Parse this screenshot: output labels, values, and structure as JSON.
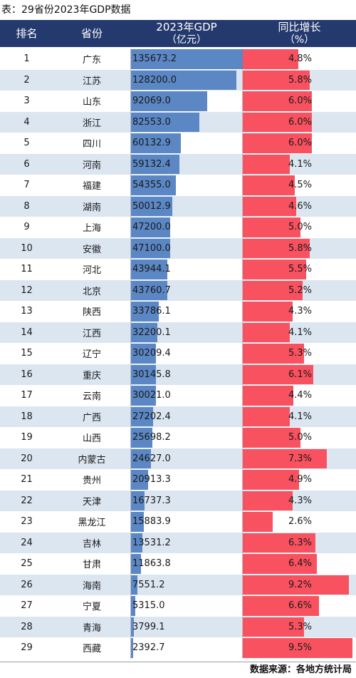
{
  "caption": "表：29省份2023年GDP数据",
  "headers": {
    "rank": "排名",
    "province": "省份",
    "gdp_line1": "2023年GDP",
    "gdp_line2": "（亿元）",
    "growth_line1": "同比增长",
    "growth_line2": "（%）"
  },
  "colors": {
    "header_bg": "#243a6e",
    "gdp_bar": "#5b87c5",
    "growth_bar": "#f8515f",
    "alt_row": "#dce6f1"
  },
  "gdp_max": 135673.2,
  "growth_max": 9.5,
  "rows": [
    {
      "rank": "1",
      "province": "广东",
      "gdp": "135673.2",
      "growth": "4.8%"
    },
    {
      "rank": "2",
      "province": "江苏",
      "gdp": "128200.0",
      "growth": "5.8%"
    },
    {
      "rank": "3",
      "province": "山东",
      "gdp": "92069.0",
      "growth": "6.0%"
    },
    {
      "rank": "4",
      "province": "浙江",
      "gdp": "82553.0",
      "growth": "6.0%"
    },
    {
      "rank": "5",
      "province": "四川",
      "gdp": "60132.9",
      "growth": "6.0%"
    },
    {
      "rank": "6",
      "province": "河南",
      "gdp": "59132.4",
      "growth": "4.1%"
    },
    {
      "rank": "7",
      "province": "福建",
      "gdp": "54355.0",
      "growth": "4.5%"
    },
    {
      "rank": "8",
      "province": "湖南",
      "gdp": "50012.9",
      "growth": "4.6%"
    },
    {
      "rank": "9",
      "province": "上海",
      "gdp": "47200.0",
      "growth": "5.0%"
    },
    {
      "rank": "10",
      "province": "安徽",
      "gdp": "47100.0",
      "growth": "5.8%"
    },
    {
      "rank": "11",
      "province": "河北",
      "gdp": "43944.1",
      "growth": "5.5%"
    },
    {
      "rank": "12",
      "province": "北京",
      "gdp": "43760.7",
      "growth": "5.2%"
    },
    {
      "rank": "13",
      "province": "陕西",
      "gdp": "33786.1",
      "growth": "4.3%"
    },
    {
      "rank": "14",
      "province": "江西",
      "gdp": "32200.1",
      "growth": "4.1%"
    },
    {
      "rank": "15",
      "province": "辽宁",
      "gdp": "30209.4",
      "growth": "5.3%"
    },
    {
      "rank": "16",
      "province": "重庆",
      "gdp": "30145.8",
      "growth": "6.1%"
    },
    {
      "rank": "17",
      "province": "云南",
      "gdp": "30021.0",
      "growth": "4.4%"
    },
    {
      "rank": "18",
      "province": "广西",
      "gdp": "27202.4",
      "growth": "4.1%"
    },
    {
      "rank": "19",
      "province": "山西",
      "gdp": "25698.2",
      "growth": "5.0%"
    },
    {
      "rank": "20",
      "province": "内蒙古",
      "gdp": "24627.0",
      "growth": "7.3%"
    },
    {
      "rank": "21",
      "province": "贵州",
      "gdp": "20913.3",
      "growth": "4.9%"
    },
    {
      "rank": "22",
      "province": "天津",
      "gdp": "16737.3",
      "growth": "4.3%"
    },
    {
      "rank": "23",
      "province": "黑龙江",
      "gdp": "15883.9",
      "growth": "2.6%"
    },
    {
      "rank": "24",
      "province": "吉林",
      "gdp": "13531.2",
      "growth": "6.3%"
    },
    {
      "rank": "25",
      "province": "甘肃",
      "gdp": "11863.8",
      "growth": "6.4%"
    },
    {
      "rank": "26",
      "province": "海南",
      "gdp": "7551.2",
      "growth": "9.2%"
    },
    {
      "rank": "27",
      "province": "宁夏",
      "gdp": "5315.0",
      "growth": "6.6%"
    },
    {
      "rank": "28",
      "province": "青海",
      "gdp": "3799.1",
      "growth": "5.3%"
    },
    {
      "rank": "29",
      "province": "西藏",
      "gdp": "2392.7",
      "growth": "9.5%"
    }
  ],
  "footer": "数据来源：各地方统计局"
}
